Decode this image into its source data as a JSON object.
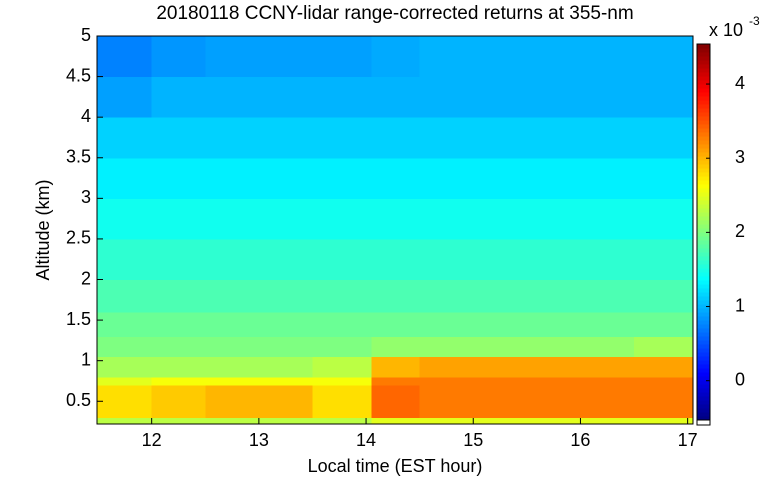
{
  "chart_data": {
    "type": "heatmap",
    "title": "20180118 CCNY-lidar range-corrected returns at 355-nm",
    "xlabel": "Local time (EST hour)",
    "ylabel": "Altitude (km)",
    "x": [
      11.49,
      12,
      12.5,
      13,
      13.5,
      14.05,
      14.5,
      15,
      15.5,
      16,
      16.5,
      17.05
    ],
    "y": [
      0.22,
      0.3,
      0.7,
      0.8,
      1.05,
      1.3,
      1.6,
      2,
      2.5,
      3,
      3.5,
      4,
      4.5,
      5
    ],
    "values": [
      [
        2.3,
        2.3,
        2.3,
        2.3,
        2.3,
        2.5,
        2.5,
        2.5,
        2.5,
        2.5,
        2.5
      ],
      [
        2.8,
        2.9,
        3.0,
        3.0,
        2.8,
        3.4,
        3.3,
        3.3,
        3.3,
        3.3,
        3.3
      ],
      [
        2.5,
        2.6,
        2.6,
        2.6,
        2.6,
        3.3,
        3.3,
        3.3,
        3.3,
        3.3,
        3.3
      ],
      [
        2.2,
        2.2,
        2.2,
        2.2,
        2.3,
        3.0,
        3.1,
        3.1,
        3.1,
        3.1,
        3.1
      ],
      [
        2.0,
        2.0,
        2.0,
        2.0,
        2.0,
        2.1,
        2.1,
        2.1,
        2.1,
        2.1,
        2.2
      ],
      [
        1.9,
        1.9,
        1.9,
        1.9,
        1.9,
        1.9,
        1.9,
        1.9,
        1.9,
        1.9,
        1.9
      ],
      [
        1.75,
        1.75,
        1.75,
        1.75,
        1.75,
        1.75,
        1.75,
        1.75,
        1.75,
        1.75,
        1.75
      ],
      [
        1.6,
        1.6,
        1.6,
        1.6,
        1.6,
        1.6,
        1.6,
        1.6,
        1.6,
        1.6,
        1.6
      ],
      [
        1.45,
        1.45,
        1.45,
        1.45,
        1.45,
        1.45,
        1.45,
        1.45,
        1.45,
        1.45,
        1.45
      ],
      [
        1.3,
        1.3,
        1.3,
        1.3,
        1.3,
        1.3,
        1.3,
        1.3,
        1.3,
        1.3,
        1.3
      ],
      [
        1.15,
        1.15,
        1.15,
        1.15,
        1.15,
        1.15,
        1.15,
        1.15,
        1.15,
        1.15,
        1.15
      ],
      [
        0.9,
        1.0,
        1.0,
        1.0,
        1.0,
        1.0,
        1.0,
        1.0,
        1.0,
        1.0,
        1.0
      ],
      [
        0.75,
        0.85,
        0.9,
        0.9,
        0.9,
        0.95,
        1.0,
        1.0,
        1.0,
        1.0,
        1.0
      ]
    ],
    "xlim": [
      11.49,
      17.05
    ],
    "ylim": [
      0.22,
      5
    ],
    "xticks": [
      12,
      13,
      14,
      15,
      16,
      17
    ],
    "yticks": [
      0.5,
      1,
      1.5,
      2,
      2.5,
      3,
      3.5,
      4,
      4.5,
      5
    ],
    "colormap": "jet",
    "colorbar": {
      "clim": [
        -0.53,
        4.54
      ],
      "ticks": [
        0,
        1,
        2,
        3,
        4
      ],
      "label": "x 10",
      "exponent": "-3"
    }
  }
}
